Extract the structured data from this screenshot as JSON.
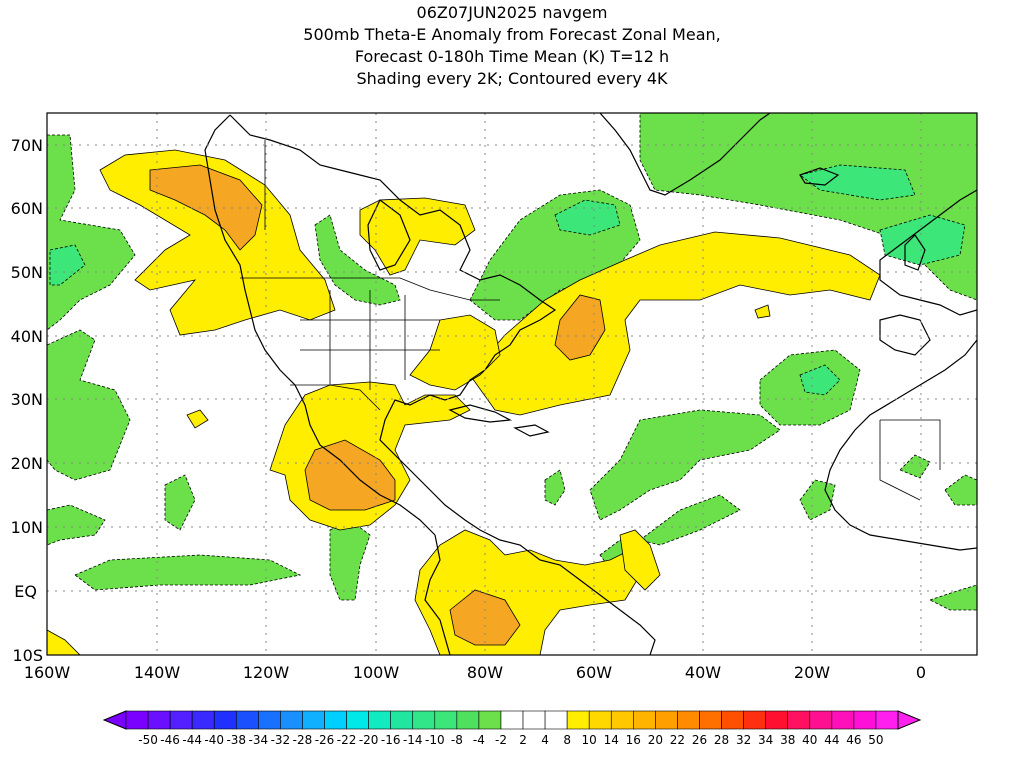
{
  "header": {
    "line1": "06Z07JUN2025 navgem",
    "line2": "500mb Theta-E Anomaly from Forecast Zonal Mean,",
    "line3": "Forecast 0-180h Time Mean (K) T=12 h",
    "line4": "Shading every 2K; Contoured every 4K"
  },
  "map": {
    "lat_labels": [
      "70N",
      "60N",
      "50N",
      "40N",
      "30N",
      "20N",
      "10N",
      "EQ",
      "10S"
    ],
    "lon_labels": [
      "160W",
      "140W",
      "120W",
      "100W",
      "80W",
      "60W",
      "40W",
      "20W",
      "0"
    ],
    "lat_range": [
      "10S",
      "75N"
    ],
    "lon_range": [
      "160W",
      "10E"
    ],
    "colors": {
      "neg_light": "#6be04b",
      "neg_mid": "#3ce678",
      "neg_dark": "#21e6a0",
      "pos_light": "#ffee00",
      "pos_mid": "#ffcc00",
      "pos_dark": "#f5a623",
      "pos_darker": "#ee8a1e",
      "coast": "#000000"
    }
  },
  "colorbar": {
    "labels": [
      "-50",
      "-46",
      "-44",
      "-40",
      "-38",
      "-34",
      "-32",
      "-28",
      "-26",
      "-22",
      "-20",
      "-16",
      "-14",
      "-10",
      "-8",
      "-4",
      "-2",
      "2",
      "4",
      "8",
      "10",
      "14",
      "16",
      "20",
      "22",
      "26",
      "28",
      "32",
      "34",
      "38",
      "40",
      "44",
      "46",
      "50"
    ],
    "colors": [
      "#7a00ff",
      "#6a10ff",
      "#5520ff",
      "#3a2aff",
      "#2030ff",
      "#1a50ff",
      "#1a70ff",
      "#1a90ff",
      "#10b0ff",
      "#00d0ff",
      "#00e8e8",
      "#10ecc0",
      "#20e6a0",
      "#30e688",
      "#3ce678",
      "#50e060",
      "#6be04b",
      "#ffffff",
      "#ffffff",
      "#ffffff",
      "#ffee00",
      "#ffd800",
      "#ffc800",
      "#ffb400",
      "#ffa000",
      "#ff8c00",
      "#ff7000",
      "#ff5000",
      "#ff3010",
      "#ff1030",
      "#ff1060",
      "#ff1090",
      "#ff10b8",
      "#ff10d8",
      "#ff20f0"
    ]
  }
}
